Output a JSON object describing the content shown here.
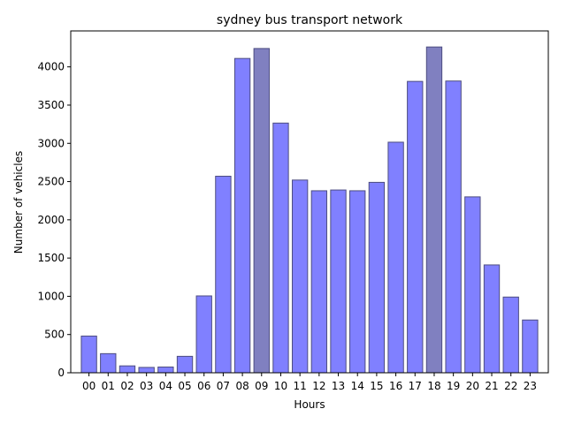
{
  "chart_data": {
    "type": "bar",
    "title": "sydney bus transport network",
    "xlabel": "Hours",
    "ylabel": "Number of vehicles",
    "categories": [
      "00",
      "01",
      "02",
      "03",
      "04",
      "05",
      "06",
      "07",
      "08",
      "09",
      "10",
      "11",
      "12",
      "13",
      "14",
      "15",
      "16",
      "17",
      "18",
      "19",
      "20",
      "21",
      "22",
      "23"
    ],
    "values": [
      480,
      250,
      90,
      70,
      75,
      215,
      1005,
      2570,
      4110,
      4240,
      3265,
      2520,
      2380,
      2390,
      2380,
      2490,
      3015,
      3810,
      4260,
      3815,
      2300,
      1410,
      990,
      690
    ],
    "highlighted": [
      "09",
      "18"
    ],
    "ylim": [
      0,
      4470
    ],
    "yticks": [
      0,
      500,
      1000,
      1500,
      2000,
      2500,
      3000,
      3500,
      4000
    ],
    "grid": false,
    "colors": {
      "bar": "#8080ff",
      "bar_highlight": "#8080c0",
      "bar_edge": "#4d4d80",
      "axis": "#000000"
    }
  }
}
